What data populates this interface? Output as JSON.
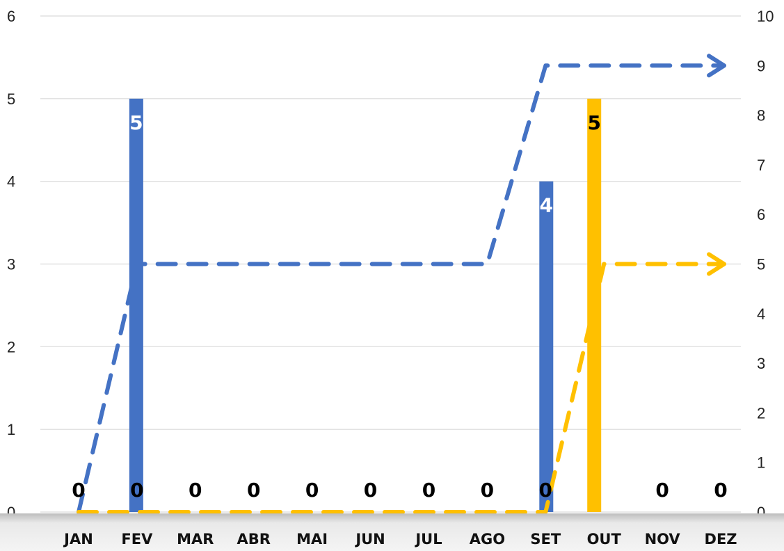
{
  "chart_data": {
    "type": "bar",
    "categories": [
      "JAN",
      "FEV",
      "MAR",
      "ABR",
      "MAI",
      "JUN",
      "JUL",
      "AGO",
      "SET",
      "OUT",
      "NOV",
      "DEZ"
    ],
    "ylim": [
      0,
      6
    ],
    "y2lim": [
      0,
      10
    ],
    "yticks": [
      "0",
      "1",
      "2",
      "3",
      "4",
      "5",
      "6"
    ],
    "y2ticks": [
      "0",
      "1",
      "2",
      "3",
      "4",
      "5",
      "6",
      "7",
      "8",
      "9",
      "10"
    ],
    "grid": true,
    "bar_series": [
      {
        "color": "#4472C4",
        "label_color": "#ffffff",
        "values": [
          0,
          5,
          0,
          0,
          0,
          0,
          0,
          0,
          4,
          null,
          0,
          0
        ]
      },
      {
        "color": "#FFC000",
        "label_color": "#000000",
        "values": [
          null,
          null,
          null,
          null,
          null,
          null,
          null,
          null,
          null,
          5,
          null,
          null
        ]
      }
    ],
    "zero_labels": [
      {
        "category": "JAN",
        "text": "0"
      },
      {
        "category": "FEV",
        "text": "0"
      },
      {
        "category": "MAR",
        "text": "0"
      },
      {
        "category": "ABR",
        "text": "0"
      },
      {
        "category": "MAI",
        "text": "0"
      },
      {
        "category": "JUN",
        "text": "0"
      },
      {
        "category": "JUL",
        "text": "0"
      },
      {
        "category": "AGO",
        "text": "0"
      },
      {
        "category": "SET",
        "text": "0"
      },
      {
        "category": "NOV",
        "text": "0"
      },
      {
        "category": "DEZ",
        "text": "0"
      }
    ],
    "line_series": [
      {
        "color": "#4472C4",
        "axis": "right",
        "style": "dashed-arrow",
        "values": [
          0,
          5,
          5,
          5,
          5,
          5,
          5,
          5,
          9,
          9,
          9,
          9
        ]
      },
      {
        "color": "#FFC000",
        "axis": "right",
        "style": "dashed-arrow",
        "values": [
          0,
          0,
          0,
          0,
          0,
          0,
          0,
          0,
          0,
          5,
          5,
          5
        ]
      }
    ]
  }
}
